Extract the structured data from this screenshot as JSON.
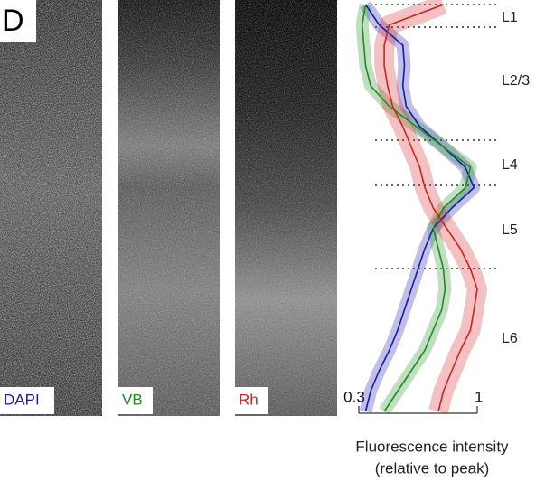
{
  "chart_data": {
    "type": "line",
    "orientation": "vertical-profile",
    "panel_label": "D",
    "xlabel": [
      "Fluorescence intensity",
      "(relative to peak)"
    ],
    "annotations": [
      "L1",
      "L2/3",
      "L4",
      "L5",
      "L6"
    ],
    "categories": [
      null,
      null,
      null,
      null,
      null,
      null,
      null,
      null,
      null,
      null,
      null,
      null,
      null,
      null,
      null,
      null,
      null,
      null,
      null,
      null,
      null
    ],
    "xlim": [
      0.3,
      1
    ],
    "xticks": [
      0.3,
      1
    ],
    "series": [
      {
        "name": "DAPI",
        "color": "#1a1aa8",
        "values": [
          0.34,
          0.42,
          0.56,
          0.57,
          0.56,
          0.58,
          0.66,
          0.8,
          0.93,
          0.98,
          0.85,
          0.74,
          0.69,
          0.65,
          0.61,
          0.57,
          0.53,
          0.48,
          0.42,
          0.37,
          0.34
        ]
      },
      {
        "name": "VB",
        "color": "#1e8c1e",
        "values": [
          0.34,
          0.32,
          0.33,
          0.34,
          0.37,
          0.48,
          0.64,
          0.8,
          0.96,
          0.93,
          0.8,
          0.74,
          0.77,
          0.8,
          0.81,
          0.79,
          0.74,
          0.69,
          0.61,
          0.53,
          0.45
        ]
      },
      {
        "name": "Rh",
        "color": "#d42020",
        "values": [
          0.8,
          0.48,
          0.45,
          0.45,
          0.47,
          0.5,
          0.56,
          0.61,
          0.66,
          0.69,
          0.74,
          0.82,
          0.9,
          0.96,
          1.0,
          0.98,
          0.96,
          0.9,
          0.85,
          0.8,
          0.77
        ]
      }
    ]
  }
}
